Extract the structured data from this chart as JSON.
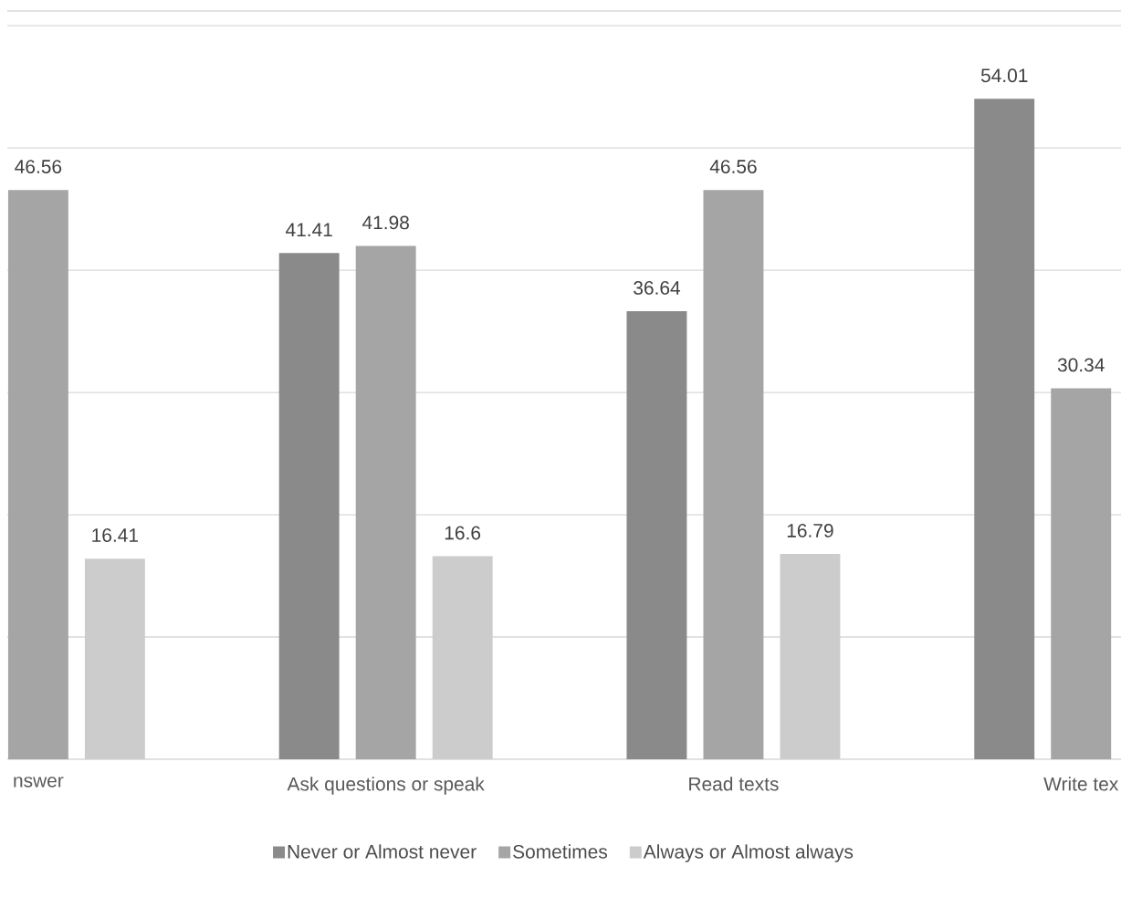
{
  "chart_data": {
    "type": "bar",
    "categories": [
      "nswer",
      "Ask questions or speak",
      "Read texts",
      "Write tex"
    ],
    "series": [
      {
        "name": "Never or Almost never",
        "color": "#8a8a8a",
        "values": [
          null,
          41.41,
          36.64,
          54.01
        ]
      },
      {
        "name": "Sometimes",
        "color": "#a5a5a5",
        "values": [
          46.56,
          41.98,
          46.56,
          30.34
        ]
      },
      {
        "name": "Always or Almost always",
        "color": "#cccccc",
        "values": [
          16.41,
          16.6,
          16.79,
          null
        ]
      }
    ],
    "ylim": [
      0,
      61.2
    ],
    "yticks": [
      {
        "value": 0,
        "label": null
      },
      {
        "value": 10,
        "label": null
      },
      {
        "value": 20,
        "label": null
      },
      {
        "value": 30,
        "label": null
      },
      {
        "value": 40,
        "label": null
      },
      {
        "value": 50,
        "label": null
      },
      {
        "value": 60,
        "label": null
      }
    ],
    "grid": "y",
    "data_labels": true,
    "legend": "bottom",
    "tick_labels": "x"
  }
}
